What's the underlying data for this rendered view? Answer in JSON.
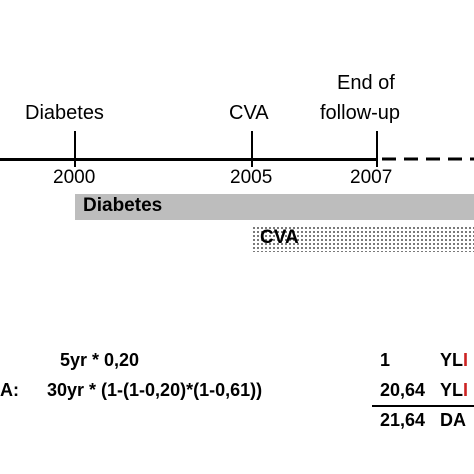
{
  "events": {
    "diabetes_label": "Diabetes",
    "cva_label": "CVA",
    "end_label_line1": "End of",
    "end_label_line2": "follow-up"
  },
  "years": {
    "y2000": "2000",
    "y2005": "2005",
    "y2007": "2007"
  },
  "bars": {
    "diabetes": "Diabetes",
    "cva": "CVA"
  },
  "calc": {
    "row1_formula": "5yr *  0,20",
    "row2_prefix": "A:",
    "row2_formula": "30yr * (1-(1-0,20)*(1-0,61))",
    "row1_value": "1",
    "row2_value": "20,64",
    "row3_value": "21,64",
    "row1_unit": "YL",
    "row1_unit_cut": "I",
    "row2_unit": "YL",
    "row2_unit_cut": "I",
    "row3_unit": "DA"
  },
  "colors": {
    "timeline": "#000000",
    "diabetes_bar": "#bdbdbd",
    "cva_dots": "#555555",
    "cut_text": "#cc2222"
  }
}
